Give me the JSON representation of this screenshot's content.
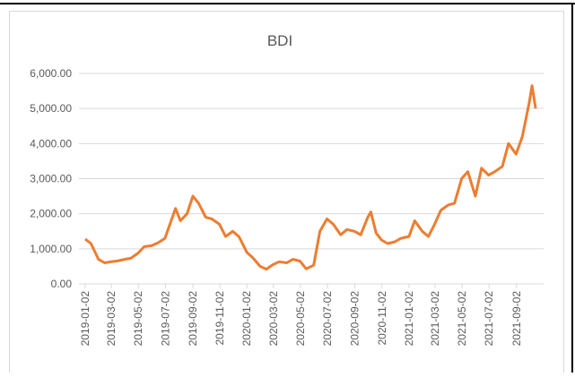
{
  "chart_data": {
    "type": "line",
    "title": "BDI",
    "x": [
      "2019-01-02",
      "2019-01-15",
      "2019-02-01",
      "2019-02-15",
      "2019-03-01",
      "2019-03-15",
      "2019-04-01",
      "2019-04-15",
      "2019-05-01",
      "2019-05-15",
      "2019-06-01",
      "2019-06-15",
      "2019-07-01",
      "2019-07-15",
      "2019-07-25",
      "2019-08-05",
      "2019-08-20",
      "2019-09-02",
      "2019-09-15",
      "2019-10-01",
      "2019-10-15",
      "2019-11-01",
      "2019-11-15",
      "2019-12-01",
      "2019-12-15",
      "2020-01-02",
      "2020-01-15",
      "2020-02-01",
      "2020-02-15",
      "2020-03-01",
      "2020-03-15",
      "2020-04-01",
      "2020-04-15",
      "2020-05-01",
      "2020-05-15",
      "2020-06-01",
      "2020-06-15",
      "2020-07-01",
      "2020-07-15",
      "2020-08-01",
      "2020-08-15",
      "2020-09-01",
      "2020-09-15",
      "2020-10-01",
      "2020-10-08",
      "2020-10-20",
      "2020-11-01",
      "2020-11-15",
      "2020-12-01",
      "2020-12-15",
      "2021-01-02",
      "2021-01-15",
      "2021-02-01",
      "2021-02-15",
      "2021-03-01",
      "2021-03-15",
      "2021-04-01",
      "2021-04-15",
      "2021-05-01",
      "2021-05-15",
      "2021-06-01",
      "2021-06-15",
      "2021-07-01",
      "2021-07-15",
      "2021-08-01",
      "2021-08-15",
      "2021-09-01",
      "2021-09-15",
      "2021-10-01",
      "2021-10-07",
      "2021-10-15"
    ],
    "series": [
      {
        "name": "BDI",
        "color": "#ed7d31",
        "values": [
          1280,
          1150,
          700,
          600,
          630,
          650,
          700,
          730,
          870,
          1060,
          1090,
          1170,
          1300,
          1800,
          2150,
          1800,
          2000,
          2500,
          2300,
          1900,
          1850,
          1700,
          1350,
          1500,
          1350,
          900,
          750,
          500,
          420,
          550,
          630,
          600,
          700,
          650,
          430,
          530,
          1500,
          1850,
          1700,
          1400,
          1550,
          1500,
          1400,
          1900,
          2050,
          1450,
          1250,
          1150,
          1200,
          1300,
          1350,
          1800,
          1500,
          1350,
          1700,
          2100,
          2250,
          2300,
          3000,
          3200,
          2500,
          3300,
          3100,
          3200,
          3350,
          4000,
          3700,
          4200,
          5200,
          5650,
          5000
        ]
      }
    ],
    "xlim": [
      "2019-01-02",
      "2021-10-25"
    ],
    "xticks": [
      "2019-01-02",
      "2019-03-02",
      "2019-05-02",
      "2019-07-02",
      "2019-09-02",
      "2019-11-02",
      "2020-01-02",
      "2020-03-02",
      "2020-05-02",
      "2020-07-02",
      "2020-09-02",
      "2020-11-02",
      "2021-01-02",
      "2021-03-02",
      "2021-05-02",
      "2021-07-02",
      "2021-09-02"
    ],
    "ylim": [
      0,
      6000
    ],
    "yticks": [
      {
        "value": 0,
        "label": "0.00"
      },
      {
        "value": 1000,
        "label": "1,000.00"
      },
      {
        "value": 2000,
        "label": "2,000.00"
      },
      {
        "value": 3000,
        "label": "3,000.00"
      },
      {
        "value": 4000,
        "label": "4,000.00"
      },
      {
        "value": 5000,
        "label": "5,000.00"
      },
      {
        "value": 6000,
        "label": "6,000.00"
      }
    ],
    "grid": true
  }
}
